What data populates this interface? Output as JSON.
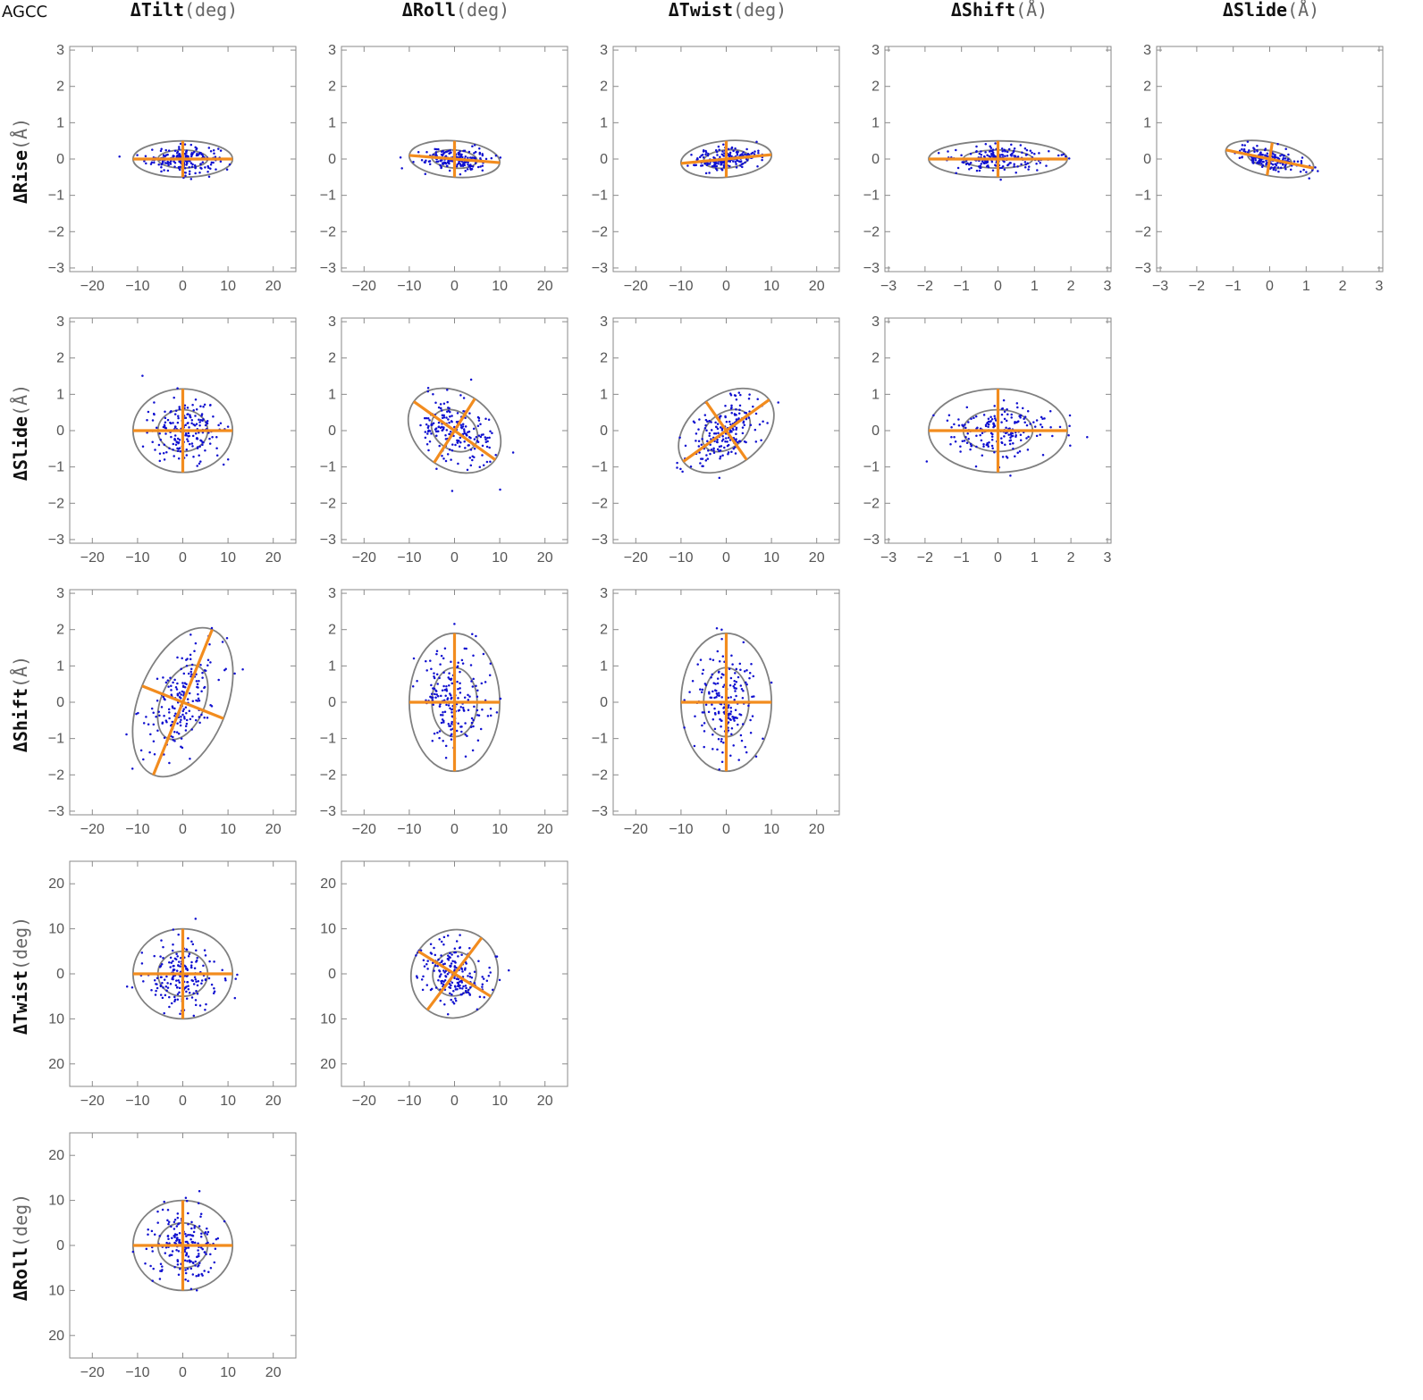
{
  "corner_label": "AGCC",
  "columns": [
    {
      "name": "ΔTilt",
      "unit": "(deg)"
    },
    {
      "name": "ΔRoll",
      "unit": "(deg)"
    },
    {
      "name": "ΔTwist",
      "unit": "(deg)"
    },
    {
      "name": "ΔShift",
      "unit": "(Å)"
    },
    {
      "name": "ΔSlide",
      "unit": "(Å)"
    }
  ],
  "rows": [
    {
      "name": "ΔRise",
      "unit": "(Å)"
    },
    {
      "name": "ΔSlide",
      "unit": "(Å)"
    },
    {
      "name": "ΔShift",
      "unit": "(Å)"
    },
    {
      "name": "ΔTwist",
      "unit": "(deg)"
    },
    {
      "name": "ΔRoll",
      "unit": "(deg)"
    }
  ],
  "chart_data": [
    {
      "type": "scatter",
      "panel": "ΔRise vs ΔTilt",
      "row": 0,
      "col": 0,
      "xlim": [
        -25,
        25
      ],
      "ylim": [
        -3.1,
        3.1
      ],
      "xticks": [
        "-20",
        "-10",
        "0",
        "10",
        "20"
      ],
      "yticks": [
        "3",
        "2",
        "1",
        "0",
        "-1",
        "-2",
        "-3"
      ],
      "center": [
        0,
        0
      ],
      "major_axis_end": [
        11,
        0
      ],
      "minor_axis_end": [
        0,
        0.5
      ],
      "contour_scales": [
        0.5,
        1.0
      ],
      "sd_x": 4.0,
      "sd_y": 0.18,
      "corr": 0
    },
    {
      "type": "scatter",
      "panel": "ΔRise vs ΔRoll",
      "row": 0,
      "col": 1,
      "xlim": [
        -25,
        25
      ],
      "ylim": [
        -3.1,
        3.1
      ],
      "xticks": [
        "-20",
        "-10",
        "0",
        "10",
        "20"
      ],
      "yticks": [
        "3",
        "2",
        "1",
        "0",
        "-1",
        "-2",
        "-3"
      ],
      "center": [
        0,
        0
      ],
      "major_axis_end": [
        10,
        -0.1
      ],
      "minor_axis_end": [
        0,
        0.5
      ],
      "contour_scales": [
        0.5,
        1.0
      ],
      "sd_x": 3.6,
      "sd_y": 0.16,
      "corr": -0.2
    },
    {
      "type": "scatter",
      "panel": "ΔRise vs ΔTwist",
      "row": 0,
      "col": 2,
      "xlim": [
        -25,
        25
      ],
      "ylim": [
        -3.1,
        3.1
      ],
      "xticks": [
        "-20",
        "-10",
        "0",
        "10",
        "20"
      ],
      "yticks": [
        "3",
        "2",
        "1",
        "0",
        "-1",
        "-2",
        "-3"
      ],
      "center": [
        0,
        0
      ],
      "major_axis_end": [
        10,
        0.12
      ],
      "minor_axis_end": [
        0,
        0.5
      ],
      "contour_scales": [
        0.5,
        1.0
      ],
      "sd_x": 3.6,
      "sd_y": 0.16,
      "corr": 0.25
    },
    {
      "type": "scatter",
      "panel": "ΔRise vs ΔShift",
      "row": 0,
      "col": 3,
      "xlim": [
        -3.1,
        3.1
      ],
      "ylim": [
        -3.1,
        3.1
      ],
      "xticks": [
        "-3",
        "-2",
        "-1",
        "0",
        "1",
        "2",
        "3"
      ],
      "yticks": [
        "3",
        "2",
        "1",
        "0",
        "-1",
        "-2",
        "-3"
      ],
      "center": [
        0,
        0
      ],
      "major_axis_end": [
        1.9,
        0
      ],
      "minor_axis_end": [
        0,
        0.5
      ],
      "contour_scales": [
        0.5,
        1.0
      ],
      "sd_x": 0.7,
      "sd_y": 0.17,
      "corr": 0
    },
    {
      "type": "scatter",
      "panel": "ΔRise vs ΔSlide",
      "row": 0,
      "col": 4,
      "xlim": [
        -3.1,
        3.1
      ],
      "ylim": [
        -3.1,
        3.1
      ],
      "xticks": [
        "-3",
        "-2",
        "-1",
        "0",
        "1",
        "2",
        "3"
      ],
      "yticks": [
        "3",
        "2",
        "1",
        "0",
        "-1",
        "-2",
        "-3"
      ],
      "center": [
        0,
        0
      ],
      "major_axis_end": [
        1.2,
        -0.25
      ],
      "minor_axis_end": [
        0.07,
        0.45
      ],
      "contour_scales": [
        0.5,
        1.0
      ],
      "sd_x": 0.45,
      "sd_y": 0.17,
      "corr": -0.55
    },
    {
      "type": "scatter",
      "panel": "ΔSlide vs ΔTilt",
      "row": 1,
      "col": 0,
      "xlim": [
        -25,
        25
      ],
      "ylim": [
        -3.1,
        3.1
      ],
      "xticks": [
        "-20",
        "-10",
        "0",
        "10",
        "20"
      ],
      "yticks": [
        "3",
        "2",
        "1",
        "0",
        "-1",
        "-2",
        "-3"
      ],
      "center": [
        0,
        0
      ],
      "major_axis_end": [
        0,
        1.15
      ],
      "minor_axis_end": [
        11,
        0
      ],
      "contour_scales": [
        0.5,
        1.0
      ],
      "sd_x": 4.0,
      "sd_y": 0.42,
      "corr": 0
    },
    {
      "type": "scatter",
      "panel": "ΔSlide vs ΔRoll",
      "row": 1,
      "col": 1,
      "xlim": [
        -25,
        25
      ],
      "ylim": [
        -3.1,
        3.1
      ],
      "xticks": [
        "-20",
        "-10",
        "0",
        "10",
        "20"
      ],
      "yticks": [
        "3",
        "2",
        "1",
        "0",
        "-1",
        "-2",
        "-3"
      ],
      "center": [
        0,
        0
      ],
      "major_axis_end": [
        9,
        -0.8
      ],
      "minor_axis_end": [
        4.5,
        0.88
      ],
      "contour_scales": [
        0.5,
        1.0
      ],
      "sd_x": 4.0,
      "sd_y": 0.45,
      "corr": -0.45
    },
    {
      "type": "scatter",
      "panel": "ΔSlide vs ΔTwist",
      "row": 1,
      "col": 2,
      "xlim": [
        -25,
        25
      ],
      "ylim": [
        -3.1,
        3.1
      ],
      "xticks": [
        "-20",
        "-10",
        "0",
        "10",
        "20"
      ],
      "yticks": [
        "3",
        "2",
        "1",
        "0",
        "-1",
        "-2",
        "-3"
      ],
      "center": [
        0,
        0
      ],
      "major_axis_end": [
        9.5,
        0.85
      ],
      "minor_axis_end": [
        -4.5,
        0.8
      ],
      "contour_scales": [
        0.5,
        1.0
      ],
      "sd_x": 4.0,
      "sd_y": 0.45,
      "corr": 0.45
    },
    {
      "type": "scatter",
      "panel": "ΔSlide vs ΔShift",
      "row": 1,
      "col": 3,
      "xlim": [
        -3.1,
        3.1
      ],
      "ylim": [
        -3.1,
        3.1
      ],
      "xticks": [
        "-3",
        "-2",
        "-1",
        "0",
        "1",
        "2",
        "3"
      ],
      "yticks": [
        "3",
        "2",
        "1",
        "0",
        "-1",
        "-2",
        "-3"
      ],
      "center": [
        0,
        0
      ],
      "major_axis_end": [
        1.9,
        0
      ],
      "minor_axis_end": [
        0,
        1.15
      ],
      "contour_scales": [
        0.5,
        1.0
      ],
      "sd_x": 0.7,
      "sd_y": 0.42,
      "corr": 0
    },
    {
      "type": "scatter",
      "panel": "ΔShift vs ΔTilt",
      "row": 2,
      "col": 0,
      "xlim": [
        -25,
        25
      ],
      "ylim": [
        -3.1,
        3.1
      ],
      "xticks": [
        "-20",
        "-10",
        "0",
        "10",
        "20"
      ],
      "yticks": [
        "3",
        "2",
        "1",
        "0",
        "-1",
        "-2",
        "-3"
      ],
      "center": [
        0,
        0
      ],
      "major_axis_end": [
        6.5,
        2.0
      ],
      "minor_axis_end": [
        9,
        -0.45
      ],
      "contour_scales": [
        0.5,
        1.0
      ],
      "sd_x": 4.0,
      "sd_y": 0.75,
      "corr": 0.55
    },
    {
      "type": "scatter",
      "panel": "ΔShift vs ΔRoll",
      "row": 2,
      "col": 1,
      "xlim": [
        -25,
        25
      ],
      "ylim": [
        -3.1,
        3.1
      ],
      "xticks": [
        "-20",
        "-10",
        "0",
        "10",
        "20"
      ],
      "yticks": [
        "3",
        "2",
        "1",
        "0",
        "-1",
        "-2",
        "-3"
      ],
      "center": [
        0,
        0
      ],
      "major_axis_end": [
        0,
        1.9
      ],
      "minor_axis_end": [
        10,
        0
      ],
      "contour_scales": [
        0.5,
        1.0
      ],
      "sd_x": 3.6,
      "sd_y": 0.72,
      "corr": 0
    },
    {
      "type": "scatter",
      "panel": "ΔShift vs ΔTwist",
      "row": 2,
      "col": 2,
      "xlim": [
        -25,
        25
      ],
      "ylim": [
        -3.1,
        3.1
      ],
      "xticks": [
        "-20",
        "-10",
        "0",
        "10",
        "20"
      ],
      "yticks": [
        "3",
        "2",
        "1",
        "0",
        "-1",
        "-2",
        "-3"
      ],
      "center": [
        0,
        0
      ],
      "major_axis_end": [
        0,
        1.9
      ],
      "minor_axis_end": [
        10,
        0
      ],
      "contour_scales": [
        0.5,
        1.0
      ],
      "sd_x": 3.6,
      "sd_y": 0.72,
      "corr": 0
    },
    {
      "type": "scatter",
      "panel": "ΔTwist vs ΔTilt",
      "row": 3,
      "col": 0,
      "xlim": [
        -25,
        25
      ],
      "ylim": [
        -25,
        25
      ],
      "xticks": [
        "-20",
        "-10",
        "0",
        "10",
        "20"
      ],
      "yticks": [
        "20",
        "10",
        "0",
        "10",
        "20"
      ],
      "center": [
        0,
        0
      ],
      "major_axis_end": [
        0,
        10
      ],
      "minor_axis_end": [
        11,
        0
      ],
      "contour_scales": [
        0.5,
        1.0
      ],
      "sd_x": 4.0,
      "sd_y": 3.7,
      "corr": 0
    },
    {
      "type": "scatter",
      "panel": "ΔTwist vs ΔRoll",
      "row": 3,
      "col": 1,
      "xlim": [
        -25,
        25
      ],
      "ylim": [
        -25,
        25
      ],
      "xticks": [
        "-20",
        "-10",
        "0",
        "10",
        "20"
      ],
      "yticks": [
        "20",
        "10",
        "0",
        "10",
        "20"
      ],
      "center": [
        0,
        0
      ],
      "major_axis_end": [
        6,
        8
      ],
      "minor_axis_end": [
        8,
        -5
      ],
      "contour_scales": [
        0.5,
        1.0
      ],
      "sd_x": 3.8,
      "sd_y": 3.6,
      "corr": -0.3
    },
    {
      "type": "scatter",
      "panel": "ΔRoll vs ΔTilt",
      "row": 4,
      "col": 0,
      "xlim": [
        -25,
        25
      ],
      "ylim": [
        -25,
        25
      ],
      "xticks": [
        "-20",
        "-10",
        "0",
        "10",
        "20"
      ],
      "yticks": [
        "20",
        "10",
        "0",
        "10",
        "20"
      ],
      "center": [
        0,
        0
      ],
      "major_axis_end": [
        0,
        10
      ],
      "minor_axis_end": [
        11,
        0
      ],
      "contour_scales": [
        0.5,
        1.0
      ],
      "sd_x": 4.0,
      "sd_y": 3.7,
      "corr": 0
    }
  ],
  "style": {
    "point_color": "#1010d0",
    "ellipse_color": "#808080",
    "axis_color": "#f28c1e",
    "frame_color": "#8a8a8a"
  }
}
